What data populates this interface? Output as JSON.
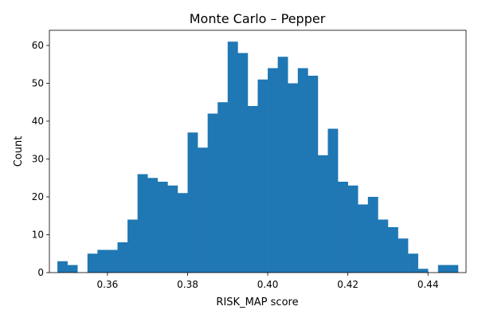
{
  "chart_data": {
    "type": "bar",
    "title": "Monte Carlo – Pepper",
    "xlabel": "RISK_MAP score",
    "ylabel": "Count",
    "xlim": [
      0.3455,
      0.4495
    ],
    "ylim": [
      0,
      64
    ],
    "x_ticks": [
      0.36,
      0.38,
      0.4,
      0.42,
      0.44
    ],
    "x_tick_labels": [
      "0.36",
      "0.38",
      "0.40",
      "0.42",
      "0.44"
    ],
    "y_ticks": [
      0,
      10,
      20,
      30,
      40,
      50,
      60
    ],
    "y_tick_labels": [
      "0",
      "10",
      "20",
      "30",
      "40",
      "50",
      "60"
    ],
    "bar_color": "#1f77b4",
    "grid": false,
    "bin_edges": [
      0.3475,
      0.35,
      0.3525,
      0.355,
      0.3575,
      0.36,
      0.3625,
      0.365,
      0.3675,
      0.37,
      0.3725,
      0.375,
      0.3775,
      0.38,
      0.3825,
      0.385,
      0.3875,
      0.39,
      0.3925,
      0.395,
      0.3975,
      0.4,
      0.4025,
      0.405,
      0.4075,
      0.41,
      0.4125,
      0.415,
      0.4175,
      0.42,
      0.4225,
      0.425,
      0.4275,
      0.43,
      0.4325,
      0.435,
      0.4375,
      0.44,
      0.4425,
      0.445,
      0.4475
    ],
    "counts": [
      3,
      2,
      0,
      5,
      6,
      6,
      8,
      14,
      26,
      25,
      24,
      23,
      21,
      37,
      33,
      42,
      45,
      61,
      58,
      44,
      51,
      54,
      57,
      50,
      54,
      52,
      31,
      38,
      24,
      23,
      18,
      20,
      14,
      12,
      9,
      5,
      1,
      0,
      2,
      2
    ]
  }
}
